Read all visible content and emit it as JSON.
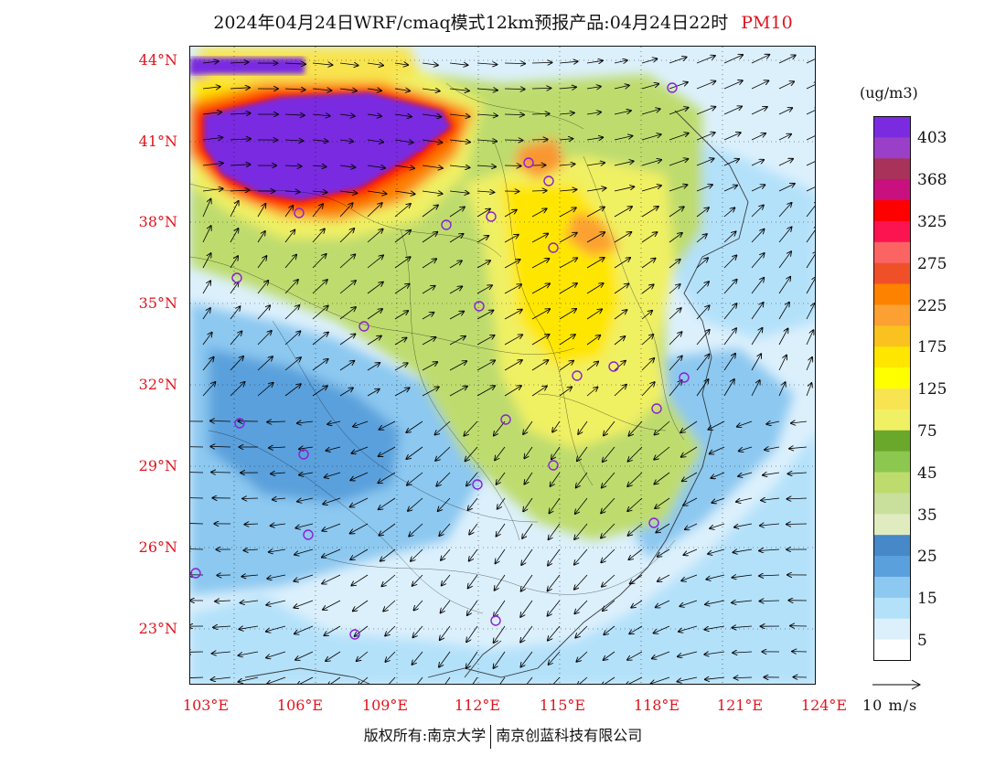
{
  "title": {
    "main": "2024年04月24日WRF/cmaq模式12km预报产品:04月24日22时",
    "variable": "PM10"
  },
  "map": {
    "lat_ticks": [
      "44°N",
      "41°N",
      "38°N",
      "35°N",
      "32°N",
      "29°N",
      "26°N",
      "23°N"
    ],
    "lon_ticks": [
      "103°E",
      "106°E",
      "109°E",
      "112°E",
      "115°E",
      "118°E",
      "121°E",
      "124°E"
    ],
    "extent": {
      "lon_min": 103,
      "lon_max": 124,
      "lat_min": 21,
      "lat_max": 44.5
    },
    "city_marker_color": "#8a1fd6",
    "wind_arrow_color": "#000000"
  },
  "colorbar": {
    "unit": "(ug/m3)",
    "labels": [
      "403",
      "368",
      "325",
      "275",
      "225",
      "175",
      "125",
      "75",
      "45",
      "35",
      "25",
      "15",
      "5"
    ],
    "colors": [
      "#7a2be0",
      "#9a3fc8",
      "#a8325a",
      "#c8107e",
      "#fe0000",
      "#fc1450",
      "#fc6464",
      "#f05028",
      "#fc8200",
      "#fca032",
      "#fac21e",
      "#ffe600",
      "#ffff00",
      "#f8e450",
      "#f0f064",
      "#6aa82c",
      "#8cc850",
      "#bedc6e",
      "#c8e09c",
      "#e0ecc0",
      "#4688c8",
      "#5aa0dc",
      "#8cc8f0",
      "#b4e1fa",
      "#dcf0fc",
      "#ffffff"
    ]
  },
  "wind_reference": {
    "label": "10 m/s"
  },
  "footer": {
    "left": "版权所有:南京大学",
    "right": "南京创蓝科技有限公司"
  }
}
